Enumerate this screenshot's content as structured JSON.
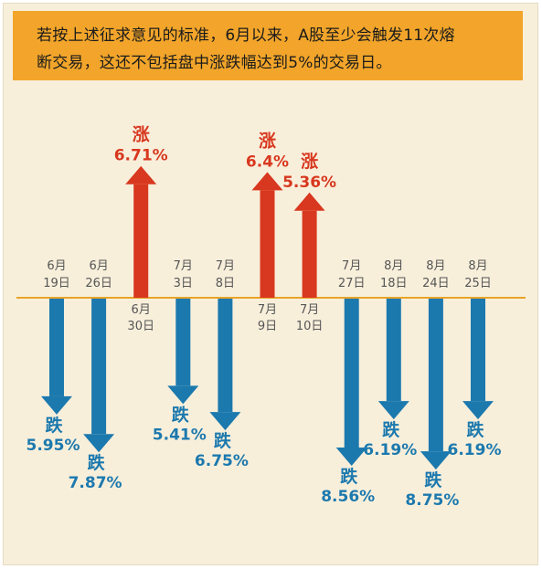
{
  "banner": {
    "line1": "若按上述征求意见的标准，6月以来，A股至少会触发11次熔",
    "line2": "断交易，这还不包括盘中涨跌幅达到5%的交易日。"
  },
  "colors": {
    "background": "#f8efdb",
    "banner": "#f2a52a",
    "axis": "#e8a426",
    "up": "#d8381f",
    "down": "#1c79ae",
    "date_text": "#555555"
  },
  "chart_data": {
    "type": "bar",
    "categories": [
      "6月19日",
      "6月26日",
      "6月30日",
      "7月3日",
      "7月8日",
      "7月9日",
      "7月10日",
      "7月27日",
      "8月18日",
      "8月24日",
      "8月25日"
    ],
    "date_labels": [
      [
        "6月",
        "19日"
      ],
      [
        "6月",
        "26日"
      ],
      [
        "6月",
        "30日"
      ],
      [
        "7月",
        "3日"
      ],
      [
        "7月",
        "8日"
      ],
      [
        "7月",
        "9日"
      ],
      [
        "7月",
        "10日"
      ],
      [
        "7月",
        "27日"
      ],
      [
        "8月",
        "18日"
      ],
      [
        "8月",
        "24日"
      ],
      [
        "8月",
        "25日"
      ]
    ],
    "values": [
      -5.95,
      -7.87,
      6.71,
      -5.41,
      -6.75,
      6.4,
      5.36,
      -8.56,
      -6.19,
      -8.75,
      -6.19
    ],
    "value_labels": [
      "5.95%",
      "7.87%",
      "6.71%",
      "5.41%",
      "6.75%",
      "6.4%",
      "5.36%",
      "8.56%",
      "6.19%",
      "8.75%",
      "6.19%"
    ],
    "direction_labels": {
      "up": "涨",
      "down": "跌"
    },
    "unit": "%"
  }
}
